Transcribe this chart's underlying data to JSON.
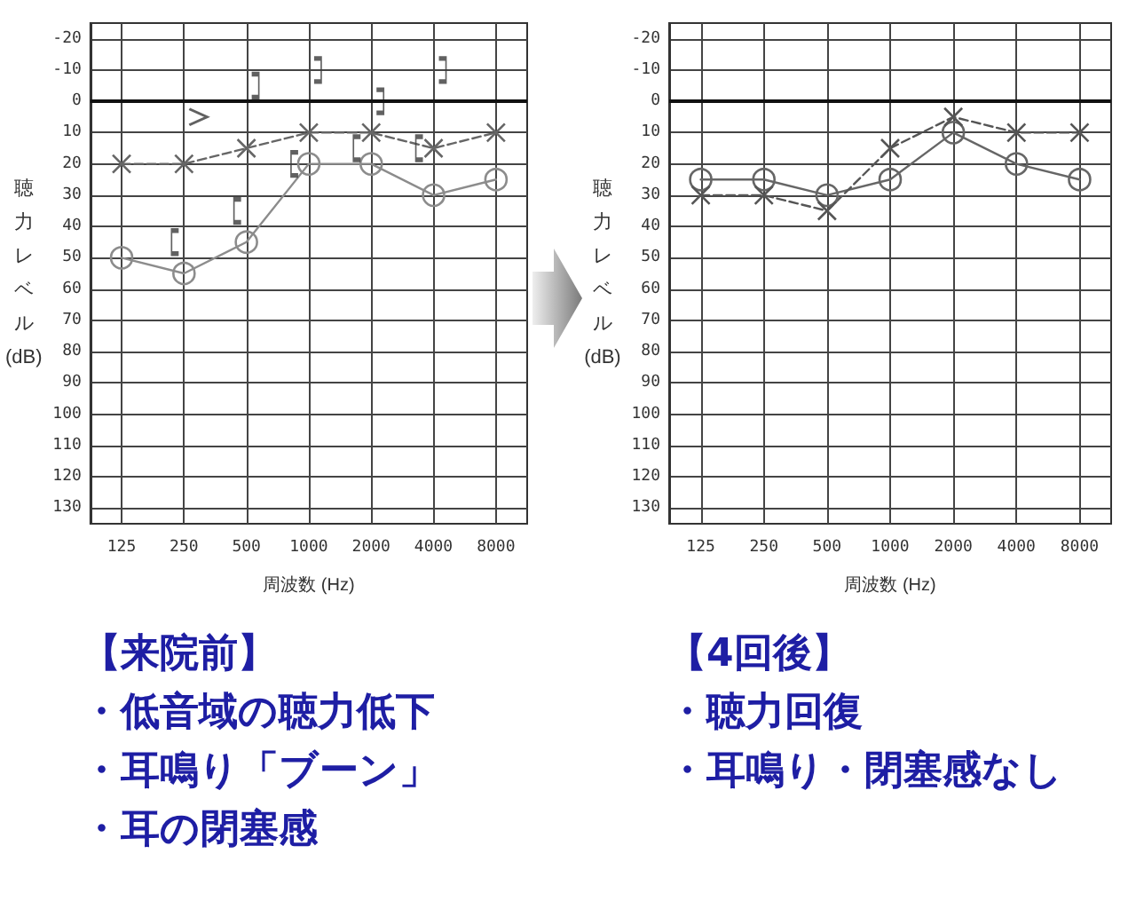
{
  "chart_data": [
    {
      "type": "line",
      "xlabel": "周波数 (Hz)",
      "ylabel": "聴力レベル(dB)",
      "categories": [
        "125",
        "250",
        "500",
        "1000",
        "2000",
        "4000",
        "8000"
      ],
      "series": [
        {
          "color": "#8c8c8c",
          "marker": "circle",
          "line_style": "solid",
          "values": [
            50,
            55,
            45,
            20,
            20,
            30,
            25
          ]
        },
        {
          "color": "#666666",
          "marker": "cross",
          "line_style": "dashed",
          "values": [
            20,
            20,
            15,
            10,
            10,
            15,
            10
          ]
        },
        {
          "type": "scatter",
          "color": "#3a3a3a",
          "values": [
            null,
            45,
            35,
            20,
            15,
            15,
            null
          ]
        },
        {
          "type": "scatter",
          "color": "#3a3a3a",
          "values": [
            null,
            null,
            -5,
            -10,
            0,
            -10,
            null
          ]
        },
        {
          "type": "scatter",
          "color": "#3a3a3a",
          "values": [
            null,
            5,
            null,
            null,
            null,
            null,
            null
          ]
        }
      ],
      "ylim": [
        135,
        -25
      ],
      "yticks": [
        -20,
        -10,
        0,
        10,
        20,
        30,
        40,
        50,
        60,
        70,
        80,
        90,
        100,
        110,
        120,
        130
      ],
      "grid": true,
      "ref_lines": [
        {
          "axis": "y",
          "value": 0,
          "color": "#111111"
        }
      ],
      "annotations": [
        "【来院前】",
        "・低音域の聴力低下",
        "・耳鳴り「ブーン」",
        "・耳の閉塞感"
      ]
    },
    {
      "type": "line",
      "xlabel": "周波数 (Hz)",
      "ylabel": "聴力レベル(dB)",
      "categories": [
        "125",
        "250",
        "500",
        "1000",
        "2000",
        "4000",
        "8000"
      ],
      "series": [
        {
          "color": "#666666",
          "marker": "circle",
          "line_style": "solid",
          "values": [
            25,
            25,
            30,
            25,
            10,
            20,
            25
          ]
        },
        {
          "color": "#555555",
          "marker": "cross",
          "line_style": "dashed",
          "values": [
            30,
            30,
            35,
            15,
            5,
            10,
            10
          ]
        }
      ],
      "ylim": [
        135,
        -25
      ],
      "yticks": [
        -20,
        -10,
        0,
        10,
        20,
        30,
        40,
        50,
        60,
        70,
        80,
        90,
        100,
        110,
        120,
        130
      ],
      "grid": true,
      "ref_lines": [
        {
          "axis": "y",
          "value": 0,
          "color": "#111111"
        }
      ],
      "annotations": [
        "【4回後】",
        "・聴力回復",
        "・耳鳴り・閉塞感なし"
      ]
    }
  ]
}
